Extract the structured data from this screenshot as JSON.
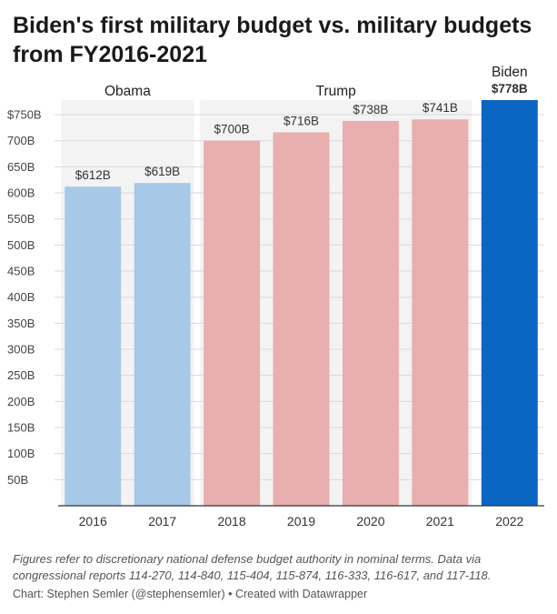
{
  "title": "Biden's first military budget vs. military budgets from FY2016-2021",
  "notes": "Figures refer to discretionary national defense budget authority in nominal terms. Data via congressional reports 114-270, 114-840, 115-404, 115-874, 116-333, 116-617, and 117-118.",
  "credit": "Chart: Stephen Semler (@stephensemler) • Created with Datawrapper",
  "chart_data": {
    "type": "bar",
    "categories": [
      "2016",
      "2017",
      "2018",
      "2019",
      "2020",
      "2021",
      "2022"
    ],
    "values": [
      612,
      619,
      700,
      716,
      738,
      741,
      778
    ],
    "value_labels": [
      "$612B",
      "$619B",
      "$700B",
      "$716B",
      "$738B",
      "$741B",
      "$778B"
    ],
    "bar_colors": [
      "#a8c8e8",
      "#a8c8e8",
      "#e8afae",
      "#e8afae",
      "#e8afae",
      "#e8afae",
      "#0a66c2"
    ],
    "highlight_index": 6,
    "ylim": [
      0,
      778
    ],
    "yticks": [
      50,
      100,
      150,
      200,
      250,
      300,
      350,
      400,
      450,
      500,
      550,
      600,
      650,
      700,
      750
    ],
    "ytick_labels": [
      "50B",
      "100B",
      "150B",
      "200B",
      "250B",
      "300B",
      "350B",
      "400B",
      "450B",
      "500B",
      "550B",
      "600B",
      "650B",
      "700B",
      "$750B"
    ],
    "groups": [
      {
        "label": "Obama",
        "start": 0,
        "end": 1,
        "shaded": true
      },
      {
        "label": "Trump",
        "start": 2,
        "end": 5,
        "shaded": true
      },
      {
        "label": "Biden",
        "start": 6,
        "end": 6,
        "shaded": false
      }
    ],
    "xlabel": "",
    "ylabel": "",
    "grid": true,
    "shade_color": "#f3f3f3"
  }
}
